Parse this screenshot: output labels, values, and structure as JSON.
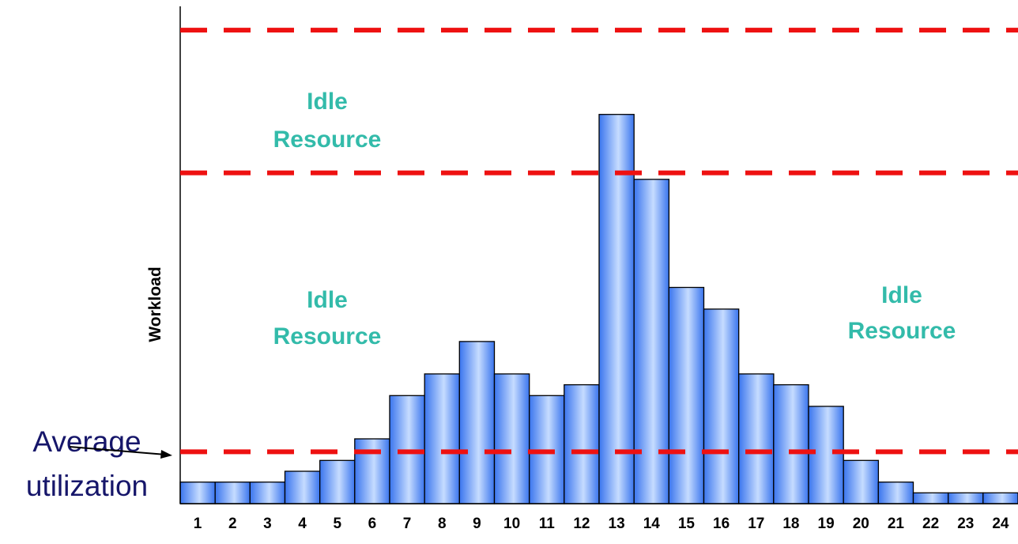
{
  "chart_data": {
    "type": "bar",
    "categories": [
      "1",
      "2",
      "3",
      "4",
      "5",
      "6",
      "7",
      "8",
      "9",
      "10",
      "11",
      "12",
      "13",
      "14",
      "15",
      "16",
      "17",
      "18",
      "19",
      "20",
      "21",
      "22",
      "23",
      "24"
    ],
    "values": [
      1,
      1,
      1,
      1.5,
      2,
      3,
      5,
      6,
      7.5,
      6,
      5,
      5.5,
      18,
      15,
      10,
      9,
      6,
      5.5,
      4.5,
      2,
      1,
      0.5,
      0.5,
      0.5
    ],
    "ylabel": "Workload",
    "ylim": [
      0,
      23
    ],
    "reference_lines": [
      {
        "value": 2.4,
        "style": "dashed"
      },
      {
        "value": 15.3,
        "style": "dashed"
      },
      {
        "value": 21.9,
        "style": "dashed"
      }
    ],
    "annotations": {
      "average": "Average utilization",
      "idle_top": "Idle Resource",
      "idle_left": "Idle Resource",
      "idle_right": "Idle Resource"
    },
    "colors": {
      "bar_light": "#c6dcff",
      "bar_dark": "#3a75ee",
      "bar_outline": "#000000",
      "reference_line": "#ee1111",
      "idle_text": "#33bbaa",
      "average_text": "#16166a"
    }
  }
}
